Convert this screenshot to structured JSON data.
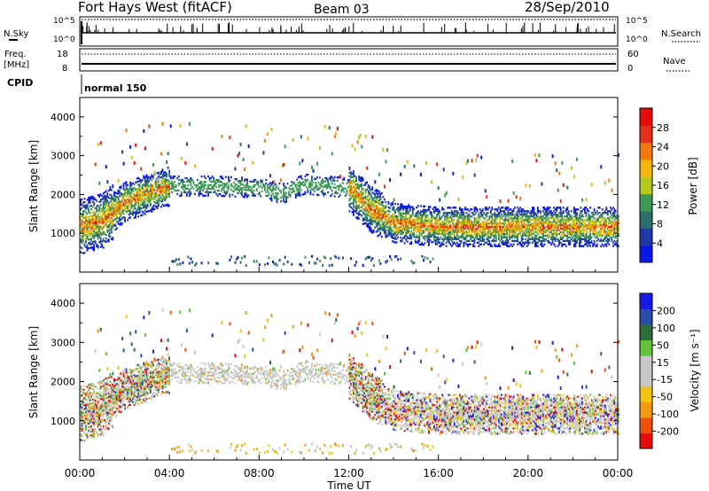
{
  "header": {
    "station": "Fort Hays West (fitACF)",
    "beam": "Beam 03",
    "date": "28/Sep/2010"
  },
  "aux": {
    "nsky_label": "N.Sky",
    "nsky_ticks": [
      "10^5",
      "10^0"
    ],
    "nsearch_label": "N.Search",
    "nsearch_ticks": [
      "10^5",
      "10^0"
    ],
    "freq_label": "Freq.",
    "freq_unit": "[MHz]",
    "freq_ticks": [
      "18",
      "8"
    ],
    "nave_label": "Nave",
    "nave_ticks": [
      "60",
      "0"
    ],
    "cpid_label": "CPID",
    "cpid_value": "normal 150"
  },
  "colors": {
    "power": [
      "#0a18e6",
      "#1f3aa8",
      "#2e6e6e",
      "#3d9a55",
      "#b6c81e",
      "#f2b60f",
      "#f07a0c",
      "#e8311a",
      "#e60a0a"
    ],
    "velocity": [
      "#e60a0a",
      "#f0500c",
      "#f39a10",
      "#f2c40f",
      "#c8c8c8",
      "#c8c8c8",
      "#62c43a",
      "#2e6e3a",
      "#2c4ca8",
      "#1a1ae6"
    ],
    "ground_scatter": "#c8c8c8"
  },
  "chart_data": [
    {
      "type": "heatmap",
      "name": "power",
      "xlabel": "",
      "ylabel": "Slant Range [km]",
      "xlim": [
        0,
        24
      ],
      "ylim": [
        0,
        4500
      ],
      "yticks": [
        "1000",
        "2000",
        "3000",
        "4000"
      ],
      "xticks": [
        "00:00",
        "04:00",
        "08:00",
        "12:00",
        "16:00",
        "20:00",
        "00:00"
      ],
      "colorbar_label": "Power [dB]",
      "colorbar_ticks": [
        "4",
        "8",
        "12",
        "16",
        "20",
        "24",
        "28"
      ],
      "band_centers_km": [
        [
          0,
          1150
        ],
        [
          1,
          1300
        ],
        [
          2,
          1800
        ],
        [
          3,
          2000
        ],
        [
          4,
          2200
        ],
        [
          6,
          2200
        ],
        [
          8,
          2150
        ],
        [
          9,
          2000
        ],
        [
          10,
          2250
        ],
        [
          12,
          2150
        ],
        [
          13,
          1600
        ],
        [
          14,
          1250
        ],
        [
          16,
          1150
        ],
        [
          20,
          1150
        ],
        [
          24,
          1150
        ]
      ]
    },
    {
      "type": "heatmap",
      "name": "velocity",
      "xlabel": "Time UT",
      "ylabel": "Slant Range [km]",
      "xlim": [
        0,
        24
      ],
      "ylim": [
        0,
        4500
      ],
      "yticks": [
        "1000",
        "2000",
        "3000",
        "4000"
      ],
      "xticks": [
        "00:00",
        "04:00",
        "08:00",
        "12:00",
        "16:00",
        "20:00",
        "00:00"
      ],
      "colorbar_label": "Velocity [m s⁻¹]",
      "colorbar_ticks": [
        "200",
        "100",
        "50",
        "15",
        "-15",
        "-50",
        "-100",
        "-200"
      ]
    }
  ]
}
